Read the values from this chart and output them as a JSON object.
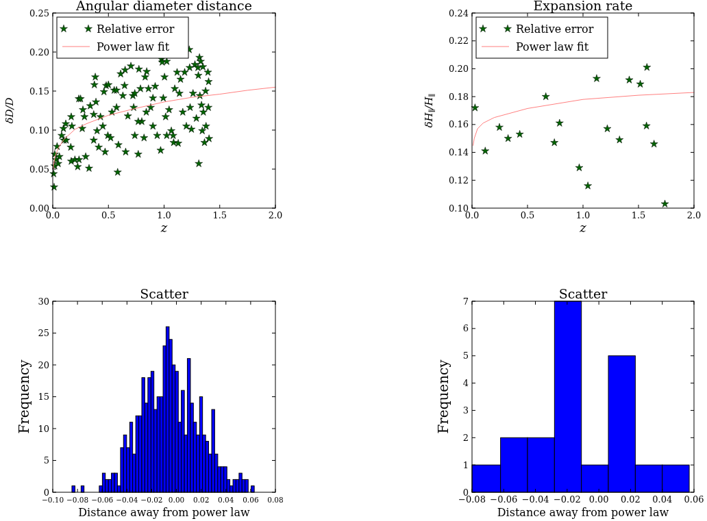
{
  "chart_data": [
    {
      "type": "scatter",
      "title": "Angular diameter distance",
      "xlabel": "z",
      "ylabel": "δD/D",
      "legend": "top left",
      "xlim": [
        0,
        2
      ],
      "xticks": [
        {
          "value": 0,
          "label": "0.0"
        },
        {
          "value": 0.5,
          "label": "0.5"
        },
        {
          "value": 1,
          "label": "1.0"
        },
        {
          "value": 1.5,
          "label": "1.5"
        },
        {
          "value": 2,
          "label": "2.0"
        }
      ],
      "ylim": [
        0,
        0.25
      ],
      "yticks": [
        {
          "value": 0,
          "label": "0.00"
        },
        {
          "value": 0.05,
          "label": "0.05"
        },
        {
          "value": 0.1,
          "label": "0.10"
        },
        {
          "value": 0.15,
          "label": "0.15"
        },
        {
          "value": 0.2,
          "label": "0.20"
        },
        {
          "value": 0.25,
          "label": "0.25"
        }
      ],
      "series": [
        {
          "name": "Relative error",
          "type": "scatter",
          "marker": "star",
          "color": "#006400",
          "x": [
            0.012,
            0.008,
            0.018,
            0.029,
            0.039,
            0.018,
            0.06,
            0.1,
            0.096,
            0.117,
            0.166,
            0.172,
            0.162,
            0.166,
            0.199,
            0.224,
            0.236,
            0.234,
            0.25,
            0.271,
            0.285,
            0.296,
            0.326,
            0.337,
            0.374,
            0.382,
            0.388,
            0.368,
            0.398,
            0.413,
            0.429,
            0.46,
            0.48,
            0.5,
            0.45,
            0.47,
            0.495,
            0.52,
            0.552,
            0.573,
            0.583,
            0.59,
            0.61,
            0.65,
            0.645,
            0.63,
            0.655,
            0.675,
            0.702,
            0.72,
            0.737,
            0.727,
            0.774,
            0.768,
            0.788,
            0.8,
            0.82,
            0.83,
            0.844,
            0.86,
            0.88,
            0.9,
            0.92,
            0.938,
            0.969,
            0.977,
            0.983,
            1.024,
            0.993,
            1.004,
            1.014,
            1.024,
            1.045,
            1.065,
            1.082,
            1.086,
            1.096,
            1.117,
            1.127,
            1.138,
            1.148,
            1.168,
            1.185,
            1.2,
            1.226,
            1.23,
            1.234,
            1.246,
            1.26,
            1.277,
            1.29,
            1.304,
            1.308,
            1.312,
            1.318,
            1.329,
            1.322,
            1.336,
            1.349,
            1.343,
            1.363,
            1.373,
            1.377,
            1.394,
            1.398,
            1.404,
            1.4,
            1.353,
            0.84,
            0.573,
            0.532,
            0.737,
            0.9,
            0.768,
            0.368,
            0.265,
            0.121,
            0.08,
            0.049
          ],
          "values": [
            0.027,
            0.044,
            0.054,
            0.062,
            0.079,
            0.069,
            0.066,
            0.087,
            0.102,
            0.108,
            0.117,
            0.105,
            0.078,
            0.06,
            0.062,
            0.053,
            0.062,
            0.14,
            0.14,
            0.126,
            0.117,
            0.066,
            0.051,
            0.131,
            0.158,
            0.168,
            0.136,
            0.087,
            0.099,
            0.078,
            0.117,
            0.149,
            0.157,
            0.158,
            0.105,
            0.072,
            0.093,
            0.09,
            0.151,
            0.151,
            0.046,
            0.081,
            0.172,
            0.177,
            0.157,
            0.144,
            0.072,
            0.118,
            0.182,
            0.144,
            0.093,
            0.129,
            0.178,
            0.069,
            0.153,
            0.111,
            0.09,
            0.168,
            0.175,
            0.153,
            0.129,
            0.105,
            0.156,
            0.093,
            0.074,
            0.191,
            0.187,
            0.188,
            0.141,
            0.168,
            0.117,
            0.093,
            0.126,
            0.099,
            0.093,
            0.084,
            0.153,
            0.174,
            0.083,
            0.147,
            0.165,
            0.123,
            0.174,
            0.105,
            0.203,
            0.18,
            0.129,
            0.101,
            0.147,
            0.184,
            0.115,
            0.18,
            0.17,
            0.057,
            0.193,
            0.188,
            0.144,
            0.132,
            0.181,
            0.099,
            0.084,
            0.15,
            0.105,
            0.174,
            0.129,
            0.089,
            0.162,
            0.123,
            0.123,
            0.129,
            0.123,
            0.147,
            0.141,
            0.111,
            0.12,
            0.102,
            0.087,
            0.093,
            0.057
          ]
        },
        {
          "name": "Power law fit",
          "type": "line",
          "color": "#ff7f7f",
          "x": [
            0.005,
            0.01,
            0.02,
            0.05,
            0.1,
            0.2,
            0.3,
            0.5,
            0.75,
            1,
            1.25,
            1.5,
            1.75,
            2
          ],
          "values": [
            0.05,
            0.057,
            0.066,
            0.077,
            0.088,
            0.101,
            0.108,
            0.119,
            0.128,
            0.136,
            0.142,
            0.146,
            0.151,
            0.155
          ]
        }
      ]
    },
    {
      "type": "scatter",
      "title": "Expansion rate",
      "xlabel": "z",
      "ylabel": "δH$_{∥}$/H$_{∥}$",
      "legend": "top left",
      "xlim": [
        0,
        2
      ],
      "xticks": [
        {
          "value": 0,
          "label": "0.0"
        },
        {
          "value": 0.5,
          "label": "0.5"
        },
        {
          "value": 1,
          "label": "1.0"
        },
        {
          "value": 1.5,
          "label": "1.5"
        },
        {
          "value": 2,
          "label": "2.0"
        }
      ],
      "ylim": [
        0.1,
        0.24
      ],
      "yticks": [
        {
          "value": 0.1,
          "label": "0.10"
        },
        {
          "value": 0.12,
          "label": "0.12"
        },
        {
          "value": 0.14,
          "label": "0.14"
        },
        {
          "value": 0.16,
          "label": "0.16"
        },
        {
          "value": 0.18,
          "label": "0.18"
        },
        {
          "value": 0.2,
          "label": "0.20"
        },
        {
          "value": 0.22,
          "label": "0.22"
        },
        {
          "value": 0.24,
          "label": "0.24"
        }
      ],
      "series": [
        {
          "name": "Relative error",
          "type": "scatter",
          "marker": "star",
          "color": "#006400",
          "x": [
            0.027,
            0.119,
            0.247,
            0.325,
            0.43,
            0.665,
            0.742,
            0.789,
            0.966,
            1.044,
            1.123,
            1.219,
            1.329,
            1.417,
            1.516,
            1.576,
            1.572,
            1.64,
            1.738
          ],
          "values": [
            0.172,
            0.141,
            0.158,
            0.15,
            0.153,
            0.18,
            0.147,
            0.161,
            0.129,
            0.116,
            0.193,
            0.157,
            0.149,
            0.192,
            0.189,
            0.201,
            0.159,
            0.146,
            0.103
          ]
        },
        {
          "name": "Power law fit",
          "type": "line",
          "color": "#ff7f7f",
          "x": [
            0.01,
            0.02,
            0.05,
            0.1,
            0.2,
            0.5,
            1,
            1.5,
            2
          ],
          "values": [
            0.145,
            0.15,
            0.157,
            0.161,
            0.165,
            0.1715,
            0.178,
            0.181,
            0.183
          ]
        }
      ]
    },
    {
      "type": "histogram",
      "title": "Scatter",
      "xlabel": "Distance away from power law",
      "ylabel": "Frequency",
      "color": "#0000ff",
      "xlim": [
        -0.1,
        0.08
      ],
      "xticks": [
        {
          "value": -0.1,
          "label": "−0.10"
        },
        {
          "value": -0.08,
          "label": "−0.08"
        },
        {
          "value": -0.06,
          "label": "−0.06"
        },
        {
          "value": -0.04,
          "label": "−0.04"
        },
        {
          "value": -0.02,
          "label": "−0.02"
        },
        {
          "value": 0,
          "label": "0.00"
        },
        {
          "value": 0.02,
          "label": "0.02"
        },
        {
          "value": 0.04,
          "label": "0.04"
        },
        {
          "value": 0.06,
          "label": "0.06"
        },
        {
          "value": 0.08,
          "label": "0.08"
        }
      ],
      "ylim": [
        0,
        30
      ],
      "yticks": [
        0,
        5,
        10,
        15,
        20,
        25,
        30
      ],
      "bins": [
        -0.0845,
        -0.082,
        -0.0796,
        -0.0771,
        -0.0747,
        -0.0722,
        -0.0698,
        -0.0673,
        -0.0649,
        -0.0624,
        -0.0599,
        -0.0575,
        -0.055,
        -0.0526,
        -0.0501,
        -0.0477,
        -0.0452,
        -0.0428,
        -0.0403,
        -0.0378,
        -0.0354,
        -0.0329,
        -0.0305,
        -0.028,
        -0.0256,
        -0.0231,
        -0.0206,
        -0.0182,
        -0.0157,
        -0.0133,
        -0.0108,
        -0.0084,
        -0.0059,
        -0.0035,
        -0.001,
        0.0015,
        0.0039,
        0.0064,
        0.0088,
        0.0113,
        0.0137,
        0.0162,
        0.0187,
        0.0211,
        0.0236,
        0.026,
        0.0285,
        0.0309,
        0.0334,
        0.0358,
        0.0383,
        0.0408,
        0.0432,
        0.0457,
        0.0481,
        0.0506,
        0.053,
        0.0555,
        0.058,
        0.0604,
        0.0629
      ],
      "values": [
        1,
        0,
        0,
        1,
        0,
        0,
        0,
        0,
        0,
        1,
        3,
        2,
        2,
        3,
        3,
        1,
        7,
        9,
        7,
        11,
        6,
        12,
        12,
        18,
        14,
        18,
        19,
        13,
        15,
        15,
        23,
        26,
        24,
        20,
        19,
        11,
        16,
        9,
        21,
        14,
        11,
        9,
        15,
        9,
        8,
        6,
        13,
        6,
        4,
        4,
        4,
        2,
        1,
        2,
        2,
        3,
        2,
        2,
        0,
        1
      ]
    },
    {
      "type": "histogram",
      "title": "Scatter",
      "xlabel": "Distance away from power law",
      "ylabel": "Frequency",
      "color": "#0000ff",
      "xlim": [
        -0.08,
        0.06
      ],
      "xticks": [
        {
          "value": -0.08,
          "label": "−0.08"
        },
        {
          "value": -0.06,
          "label": "−0.06"
        },
        {
          "value": -0.04,
          "label": "−0.04"
        },
        {
          "value": -0.02,
          "label": "−0.02"
        },
        {
          "value": 0,
          "label": "0.00"
        },
        {
          "value": 0.02,
          "label": "0.02"
        },
        {
          "value": 0.04,
          "label": "0.04"
        },
        {
          "value": 0.06,
          "label": "0.06"
        }
      ],
      "ylim": [
        0,
        7
      ],
      "yticks": [
        0,
        1,
        2,
        3,
        4,
        5,
        6,
        7
      ],
      "bins": [
        -0.08,
        -0.062,
        -0.045,
        -0.028,
        -0.011,
        0.006,
        0.023,
        0.04,
        0.057
      ],
      "values": [
        1,
        2,
        2,
        7,
        1,
        5,
        1,
        1
      ]
    }
  ]
}
